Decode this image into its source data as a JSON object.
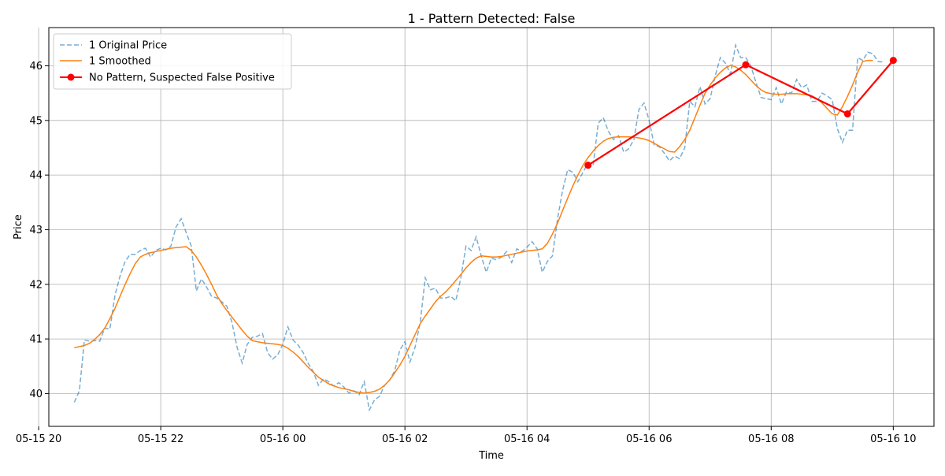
{
  "chart_data": {
    "type": "line",
    "title": "1 - Pattern Detected: False",
    "xlabel": "Time",
    "ylabel": "Price",
    "x_start": "2024-05-15 20:35",
    "x_step_minutes": 5,
    "xlim": [
      "2024-05-15 20:10",
      "2024-05-16 10:40"
    ],
    "ylim": [
      39.4,
      46.7
    ],
    "xtick_labels": [
      "05-15 20",
      "05-15 22",
      "05-16 00",
      "05-16 02",
      "05-16 04",
      "05-16 06",
      "05-16 08",
      "05-16 10"
    ],
    "ytick_labels": [
      "40",
      "41",
      "42",
      "43",
      "44",
      "45",
      "46"
    ],
    "grid": true,
    "legend_position": "top-left",
    "series": [
      {
        "name": "1 Original Price",
        "style": "dashed",
        "color": "#1f77b4",
        "values": [
          39.84,
          40.05,
          40.98,
          40.96,
          40.97,
          40.96,
          41.2,
          41.18,
          41.8,
          42.15,
          42.42,
          42.55,
          42.55,
          42.62,
          42.66,
          42.5,
          42.62,
          42.66,
          42.63,
          42.7,
          43.05,
          43.2,
          42.95,
          42.7,
          41.88,
          42.1,
          41.95,
          41.78,
          41.75,
          41.68,
          41.6,
          41.3,
          40.85,
          40.56,
          40.9,
          41.03,
          41.05,
          41.1,
          40.75,
          40.63,
          40.71,
          40.9,
          41.22,
          40.98,
          40.89,
          40.75,
          40.55,
          40.4,
          40.15,
          40.27,
          40.22,
          40.14,
          40.2,
          40.12,
          40.01,
          40.05,
          39.98,
          40.22,
          39.7,
          39.88,
          39.95,
          40.15,
          40.25,
          40.42,
          40.8,
          40.95,
          40.58,
          40.85,
          41.3,
          42.12,
          41.9,
          41.93,
          41.75,
          41.75,
          41.78,
          41.7,
          42.12,
          42.7,
          42.62,
          42.87,
          42.52,
          42.22,
          42.48,
          42.45,
          42.5,
          42.6,
          42.4,
          42.65,
          42.6,
          42.68,
          42.78,
          42.65,
          42.22,
          42.42,
          42.52,
          43.2,
          43.72,
          44.1,
          44.05,
          43.88,
          44.05,
          44.22,
          44.18,
          44.95,
          45.05,
          44.8,
          44.65,
          44.72,
          44.42,
          44.48,
          44.65,
          45.2,
          45.32,
          45.0,
          44.55,
          44.52,
          44.4,
          44.26,
          44.35,
          44.3,
          44.5,
          45.35,
          45.25,
          45.62,
          45.3,
          45.4,
          45.82,
          46.15,
          46.05,
          45.85,
          46.38,
          46.15,
          46.15,
          46.0,
          45.7,
          45.42,
          45.4,
          45.38,
          45.6,
          45.3,
          45.52,
          45.5,
          45.75,
          45.6,
          45.65,
          45.35,
          45.35,
          45.5,
          45.45,
          45.38,
          44.85,
          44.6,
          44.82,
          44.82,
          46.15,
          46.1,
          46.25,
          46.22,
          46.08,
          46.07
        ]
      },
      {
        "name": "1 Smoothed",
        "style": "solid",
        "color": "#ff7f0e",
        "values": [
          40.84,
          40.86,
          40.88,
          40.92,
          40.99,
          41.08,
          41.2,
          41.37,
          41.56,
          41.78,
          42.0,
          42.2,
          42.38,
          42.5,
          42.55,
          42.58,
          42.6,
          42.62,
          42.64,
          42.66,
          42.67,
          42.68,
          42.69,
          42.62,
          42.5,
          42.35,
          42.18,
          42.0,
          41.8,
          41.65,
          41.52,
          41.4,
          41.28,
          41.16,
          41.05,
          40.97,
          40.95,
          40.93,
          40.92,
          40.91,
          40.9,
          40.88,
          40.83,
          40.76,
          40.68,
          40.58,
          40.48,
          40.39,
          40.3,
          40.24,
          40.18,
          40.14,
          40.11,
          40.09,
          40.07,
          40.04,
          40.02,
          40.01,
          40.02,
          40.04,
          40.08,
          40.15,
          40.25,
          40.38,
          40.52,
          40.68,
          40.88,
          41.08,
          41.28,
          41.42,
          41.55,
          41.68,
          41.78,
          41.86,
          41.96,
          42.07,
          42.18,
          42.3,
          42.4,
          42.48,
          42.52,
          42.51,
          42.5,
          42.5,
          42.51,
          42.53,
          42.55,
          42.57,
          42.59,
          42.61,
          42.62,
          42.63,
          42.65,
          42.75,
          42.92,
          43.12,
          43.35,
          43.58,
          43.8,
          44.0,
          44.18,
          44.32,
          44.44,
          44.54,
          44.62,
          44.67,
          44.69,
          44.7,
          44.7,
          44.7,
          44.69,
          44.68,
          44.66,
          44.63,
          44.58,
          44.53,
          44.48,
          44.43,
          44.42,
          44.52,
          44.65,
          44.82,
          45.05,
          45.28,
          45.5,
          45.65,
          45.78,
          45.88,
          45.96,
          46.01,
          45.98,
          45.92,
          45.84,
          45.74,
          45.64,
          45.56,
          45.51,
          45.49,
          45.48,
          45.48,
          45.49,
          45.49,
          45.49,
          45.48,
          45.47,
          45.45,
          45.4,
          45.32,
          45.22,
          45.12,
          45.1,
          45.25,
          45.44,
          45.65,
          45.88,
          46.08,
          46.1,
          46.1
        ]
      },
      {
        "name": "No Pattern, Suspected False Positive",
        "style": "solid-markers",
        "color": "#ff0000",
        "x": [
          "2024-05-16 05:00",
          "2024-05-16 07:35",
          "2024-05-16 09:15",
          "2024-05-16 10:00"
        ],
        "values": [
          44.18,
          46.02,
          45.12,
          46.1
        ]
      }
    ]
  }
}
